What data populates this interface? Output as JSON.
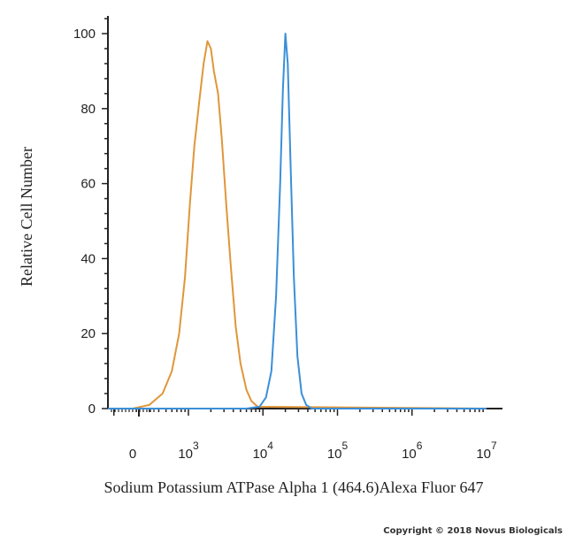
{
  "chart_data": {
    "type": "line",
    "xlabel": "Sodium Potassium ATPase Alpha 1 (464.6)Alexa Fluor 647",
    "ylabel": "Relative Cell Number",
    "x_scale": "log",
    "ylim": [
      0,
      100
    ],
    "y_ticks": [
      0,
      20,
      40,
      60,
      80,
      100
    ],
    "x_ticks": [
      {
        "value": 0,
        "base": "0",
        "exp": ""
      },
      {
        "value": 1000,
        "base": "10",
        "exp": "3"
      },
      {
        "value": 10000,
        "base": "10",
        "exp": "4"
      },
      {
        "value": 100000,
        "base": "10",
        "exp": "5"
      },
      {
        "value": 1000000,
        "base": "10",
        "exp": "6"
      },
      {
        "value": 10000000,
        "base": "10",
        "exp": "7"
      }
    ],
    "grid": false,
    "series": [
      {
        "color": "#e0963a",
        "points": [
          [
            1,
            0
          ],
          [
            180,
            0
          ],
          [
            300,
            1
          ],
          [
            450,
            4
          ],
          [
            600,
            10
          ],
          [
            750,
            20
          ],
          [
            900,
            35
          ],
          [
            1050,
            55
          ],
          [
            1200,
            70
          ],
          [
            1400,
            82
          ],
          [
            1600,
            92
          ],
          [
            1800,
            98
          ],
          [
            2000,
            96
          ],
          [
            2200,
            90
          ],
          [
            2500,
            84
          ],
          [
            2800,
            72
          ],
          [
            3200,
            55
          ],
          [
            3700,
            38
          ],
          [
            4300,
            22
          ],
          [
            5000,
            12
          ],
          [
            6000,
            5
          ],
          [
            7000,
            2
          ],
          [
            8500,
            0.5
          ],
          [
            10000000,
            0
          ]
        ]
      },
      {
        "color": "#3a8fd9",
        "points": [
          [
            1,
            0
          ],
          [
            6000,
            0
          ],
          [
            9000,
            0.5
          ],
          [
            11000,
            3
          ],
          [
            13000,
            10
          ],
          [
            15000,
            30
          ],
          [
            17000,
            60
          ],
          [
            18500,
            85
          ],
          [
            20000,
            100
          ],
          [
            21500,
            92
          ],
          [
            23500,
            65
          ],
          [
            26000,
            35
          ],
          [
            29000,
            14
          ],
          [
            33000,
            4
          ],
          [
            38000,
            1
          ],
          [
            45000,
            0
          ],
          [
            10000000,
            0
          ]
        ]
      }
    ]
  },
  "copyright": "Copyright © 2018 Novus Biologicals"
}
